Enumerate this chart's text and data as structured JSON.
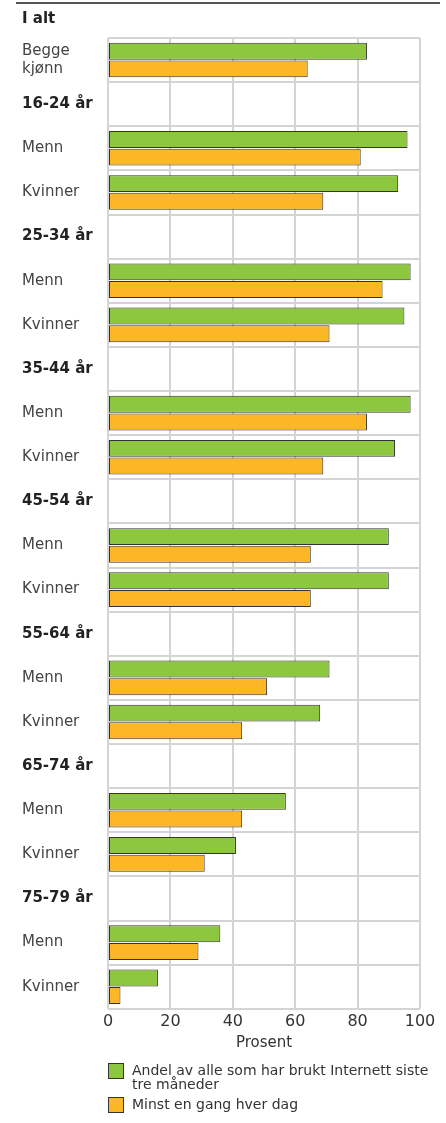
{
  "chart_data": {
    "type": "bar",
    "orientation": "horizontal",
    "title": "I alt",
    "xlabel": "Prosent",
    "categories": [
      "Begge kjønn",
      "16-24 år",
      "Menn",
      "Kvinner",
      "25-34 år",
      "Menn",
      "Kvinner",
      "35-44 år",
      "Menn",
      "Kvinner",
      "45-54 år",
      "Menn",
      "Kvinner",
      "55-64 år",
      "Menn",
      "Kvinner",
      "65-74 år",
      "Menn",
      "Kvinner",
      "75-79 år",
      "Menn",
      "Kvinner"
    ],
    "series": [
      {
        "name": "Andel av alle som har brukt Internett siste tre måneder",
        "color": "#8dc63f",
        "values": [
          83,
          null,
          96,
          93,
          null,
          97,
          95,
          null,
          97,
          92,
          null,
          90,
          90,
          null,
          71,
          68,
          null,
          57,
          41,
          null,
          36,
          16
        ]
      },
      {
        "name": "Minst en gang hver dag",
        "color": "#fbb726",
        "values": [
          64,
          null,
          81,
          69,
          null,
          88,
          71,
          null,
          83,
          69,
          null,
          65,
          65,
          null,
          51,
          43,
          null,
          43,
          31,
          null,
          29,
          4
        ]
      }
    ],
    "xlim": [
      0,
      100
    ],
    "xticks": [
      0,
      20,
      40,
      60,
      80,
      100
    ],
    "grid": true,
    "legend": "bottom"
  }
}
